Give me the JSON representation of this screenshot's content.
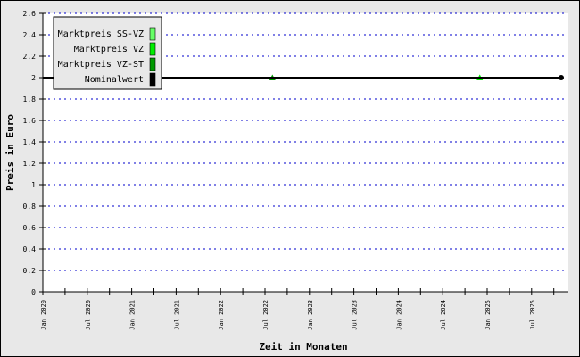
{
  "chart_data": {
    "type": "line",
    "xlabel": "Zeit in Monaten",
    "ylabel": "Preis in Euro",
    "ylim": [
      0,
      2.6
    ],
    "yticks": [
      0,
      0.2,
      0.4,
      0.6,
      0.8,
      1,
      1.2,
      1.4,
      1.6,
      1.8,
      2,
      2.2,
      2.4,
      2.6
    ],
    "xlim": [
      "2020-01",
      "2025-11"
    ],
    "xtick_labels": [
      "Jan 2020",
      "Jul 2020",
      "Jan 2021",
      "Jul 2021",
      "Jan 2022",
      "Jul 2022",
      "Jan 2023",
      "Jul 2023",
      "Jan 2024",
      "Jul 2024",
      "Jan 2025",
      "Jul 2025"
    ],
    "grid": "horizontal dotted",
    "legend_position": "top-left",
    "series": [
      {
        "name": "Marktpreis SS-VZ",
        "color": "#66ff66",
        "marker": "triangle",
        "points": [
          {
            "x": "2024-12",
            "y": 2
          }
        ]
      },
      {
        "name": "Marktpreis VZ",
        "color": "#00ee00",
        "marker": "triangle",
        "points": [
          {
            "x": "2024-12",
            "y": 2
          }
        ]
      },
      {
        "name": "Marktpreis VZ-ST",
        "color": "#009900",
        "marker": "triangle",
        "points": [
          {
            "x": "2022-08",
            "y": 2
          }
        ]
      },
      {
        "name": "Nominalwert",
        "color": "#000000",
        "marker": "circle",
        "line": true,
        "points": [
          {
            "x": "2020-01",
            "y": 2
          },
          {
            "x": "2025-11",
            "y": 2
          }
        ]
      }
    ]
  }
}
